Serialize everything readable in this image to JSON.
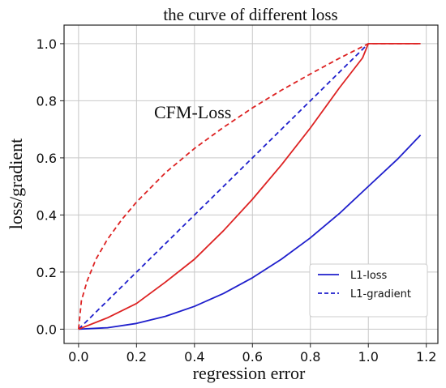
{
  "chart_data": {
    "type": "line",
    "title": "the curve of different loss",
    "xlabel": "regression error",
    "ylabel": "loss/gradient",
    "xlim": [
      -0.05,
      1.24
    ],
    "ylim": [
      -0.05,
      1.065
    ],
    "xticks": [
      0.0,
      0.2,
      0.4,
      0.6,
      0.8,
      1.0,
      1.2
    ],
    "xtick_labels": [
      "0.0",
      "0.2",
      "0.4",
      "0.6",
      "0.8",
      "1.0",
      "1.2"
    ],
    "yticks": [
      0.0,
      0.2,
      0.4,
      0.6,
      0.8,
      1.0
    ],
    "ytick_labels": [
      "0.0",
      "0.2",
      "0.4",
      "0.6",
      "0.8",
      "1.0"
    ],
    "grid": true,
    "legend_position": "bottom-right",
    "annotation": "CFM-Loss",
    "series": [
      {
        "name": "L1-loss",
        "color": "#1f1fcc",
        "style": "solid",
        "x": [
          0.0,
          0.1,
          0.2,
          0.3,
          0.4,
          0.5,
          0.6,
          0.7,
          0.8,
          0.9,
          1.0,
          1.1,
          1.18
        ],
        "y": [
          0.0,
          0.005,
          0.02,
          0.045,
          0.08,
          0.125,
          0.18,
          0.245,
          0.32,
          0.405,
          0.5,
          0.595,
          0.68
        ]
      },
      {
        "name": "L1-gradient",
        "color": "#1f1fcc",
        "style": "dashed",
        "x": [
          0.0,
          1.0
        ],
        "y": [
          0.0,
          1.0
        ]
      },
      {
        "color": "#dd2222",
        "style": "solid",
        "x": [
          0.0,
          0.1,
          0.2,
          0.3,
          0.4,
          0.5,
          0.6,
          0.7,
          0.8,
          0.9,
          0.98,
          1.0,
          1.1,
          1.18
        ],
        "y": [
          0.0,
          0.04,
          0.09,
          0.165,
          0.245,
          0.345,
          0.455,
          0.575,
          0.705,
          0.845,
          0.95,
          1.0,
          1.0,
          1.0
        ]
      },
      {
        "color": "#dd2222",
        "style": "dashed",
        "x": [
          0.0,
          0.01,
          0.03,
          0.06,
          0.1,
          0.15,
          0.2,
          0.3,
          0.4,
          0.5,
          0.6,
          0.7,
          0.8,
          0.9,
          1.0,
          1.1,
          1.18
        ],
        "y": [
          0.0,
          0.1,
          0.17,
          0.245,
          0.315,
          0.385,
          0.445,
          0.548,
          0.633,
          0.707,
          0.775,
          0.837,
          0.894,
          0.949,
          1.0,
          1.0,
          1.0
        ]
      }
    ]
  }
}
